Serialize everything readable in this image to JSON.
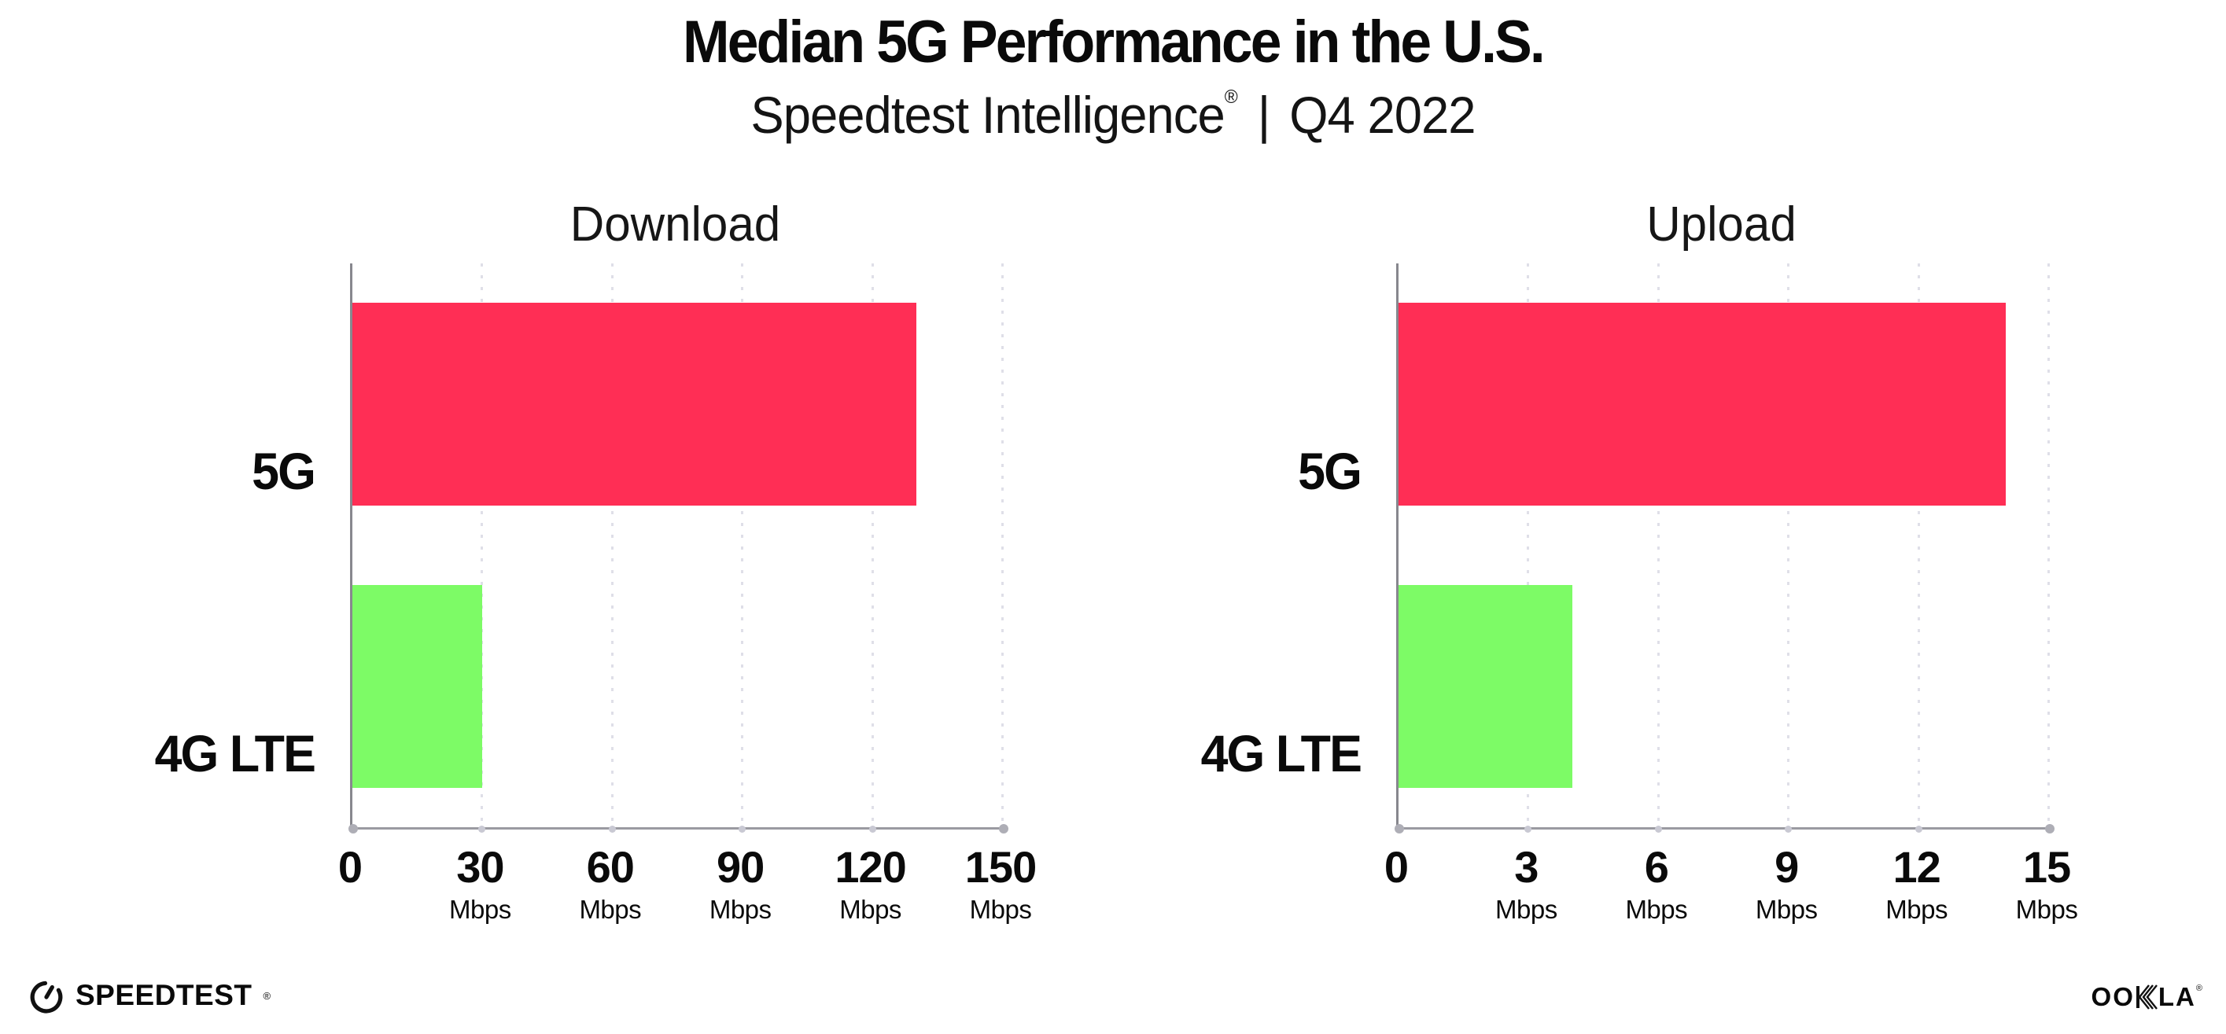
{
  "header": {
    "title": "Median 5G Performance in the U.S.",
    "subtitle_brand": "Speedtest Intelligence",
    "subtitle_reg": "®",
    "subtitle_sep": "|",
    "subtitle_period": "Q4 2022"
  },
  "chart_data": [
    {
      "type": "bar",
      "orientation": "horizontal",
      "title": "Download",
      "categories": [
        "5G",
        "4G LTE"
      ],
      "values": [
        130,
        30
      ],
      "unit": "Mbps",
      "xlim": [
        0,
        150
      ],
      "xticks": [
        0,
        30,
        60,
        90,
        120,
        150
      ],
      "grid": "vertical-dotted",
      "legend": "none",
      "bar_colors": [
        "#FF2E55",
        "#7DFB66"
      ]
    },
    {
      "type": "bar",
      "orientation": "horizontal",
      "title": "Upload",
      "categories": [
        "5G",
        "4G LTE"
      ],
      "values": [
        14,
        4
      ],
      "unit": "Mbps",
      "xlim": [
        0,
        15
      ],
      "xticks": [
        0,
        3,
        6,
        9,
        12,
        15
      ],
      "grid": "vertical-dotted",
      "legend": "none",
      "bar_colors": [
        "#FF2E55",
        "#7DFB66"
      ]
    }
  ],
  "colors": {
    "bar_5g": "#FF2E55",
    "bar_4g_lte": "#7DFB66",
    "gridline": "#DFDFE8",
    "axis": "#9A9AA1",
    "text": "#0A0A0A"
  },
  "footer": {
    "speedtest_label": "SPEEDTEST",
    "speedtest_reg": "®",
    "ookla_label_left": "OO",
    "ookla_label_right": "LA",
    "ookla_reg": "®"
  }
}
